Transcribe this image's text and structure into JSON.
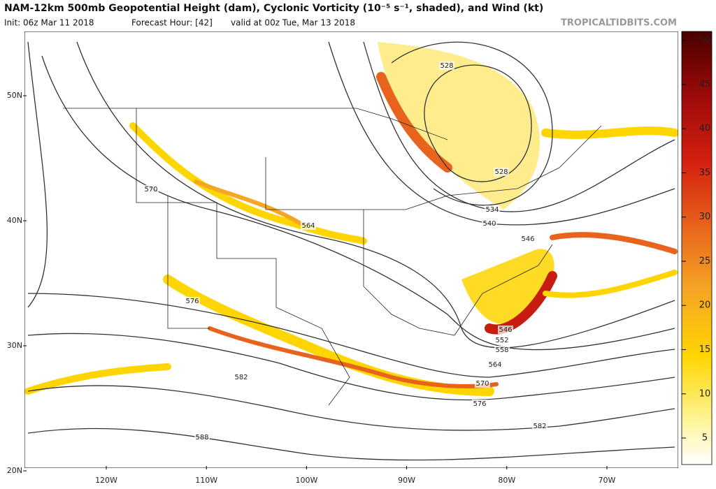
{
  "header": {
    "title": "NAM-12km 500mb Geopotential Height (dam), Cyclonic Vorticity (10⁻⁵ s⁻¹, shaded), and Wind (kt)",
    "init": "Init: 06z Mar 11 2018",
    "forecast_hour": "Forecast Hour: [42]",
    "valid": "valid at 00z Tue, Mar 13 2018",
    "credit": "TROPICALTIDBITS.COM"
  },
  "map": {
    "latitude_labels": [
      "50N",
      "40N",
      "30N",
      "20N"
    ],
    "longitude_labels": [
      "120W",
      "110W",
      "100W",
      "90W",
      "80W",
      "70W"
    ],
    "contour_labels": [
      528,
      528,
      534,
      540,
      546,
      546,
      552,
      558,
      564,
      570,
      576,
      582,
      570,
      564,
      576,
      582,
      588
    ]
  },
  "colorbar": {
    "lim": [
      2,
      51
    ],
    "ticks": [
      5,
      10,
      15,
      20,
      25,
      30,
      35,
      40,
      45,
      50
    ]
  }
}
